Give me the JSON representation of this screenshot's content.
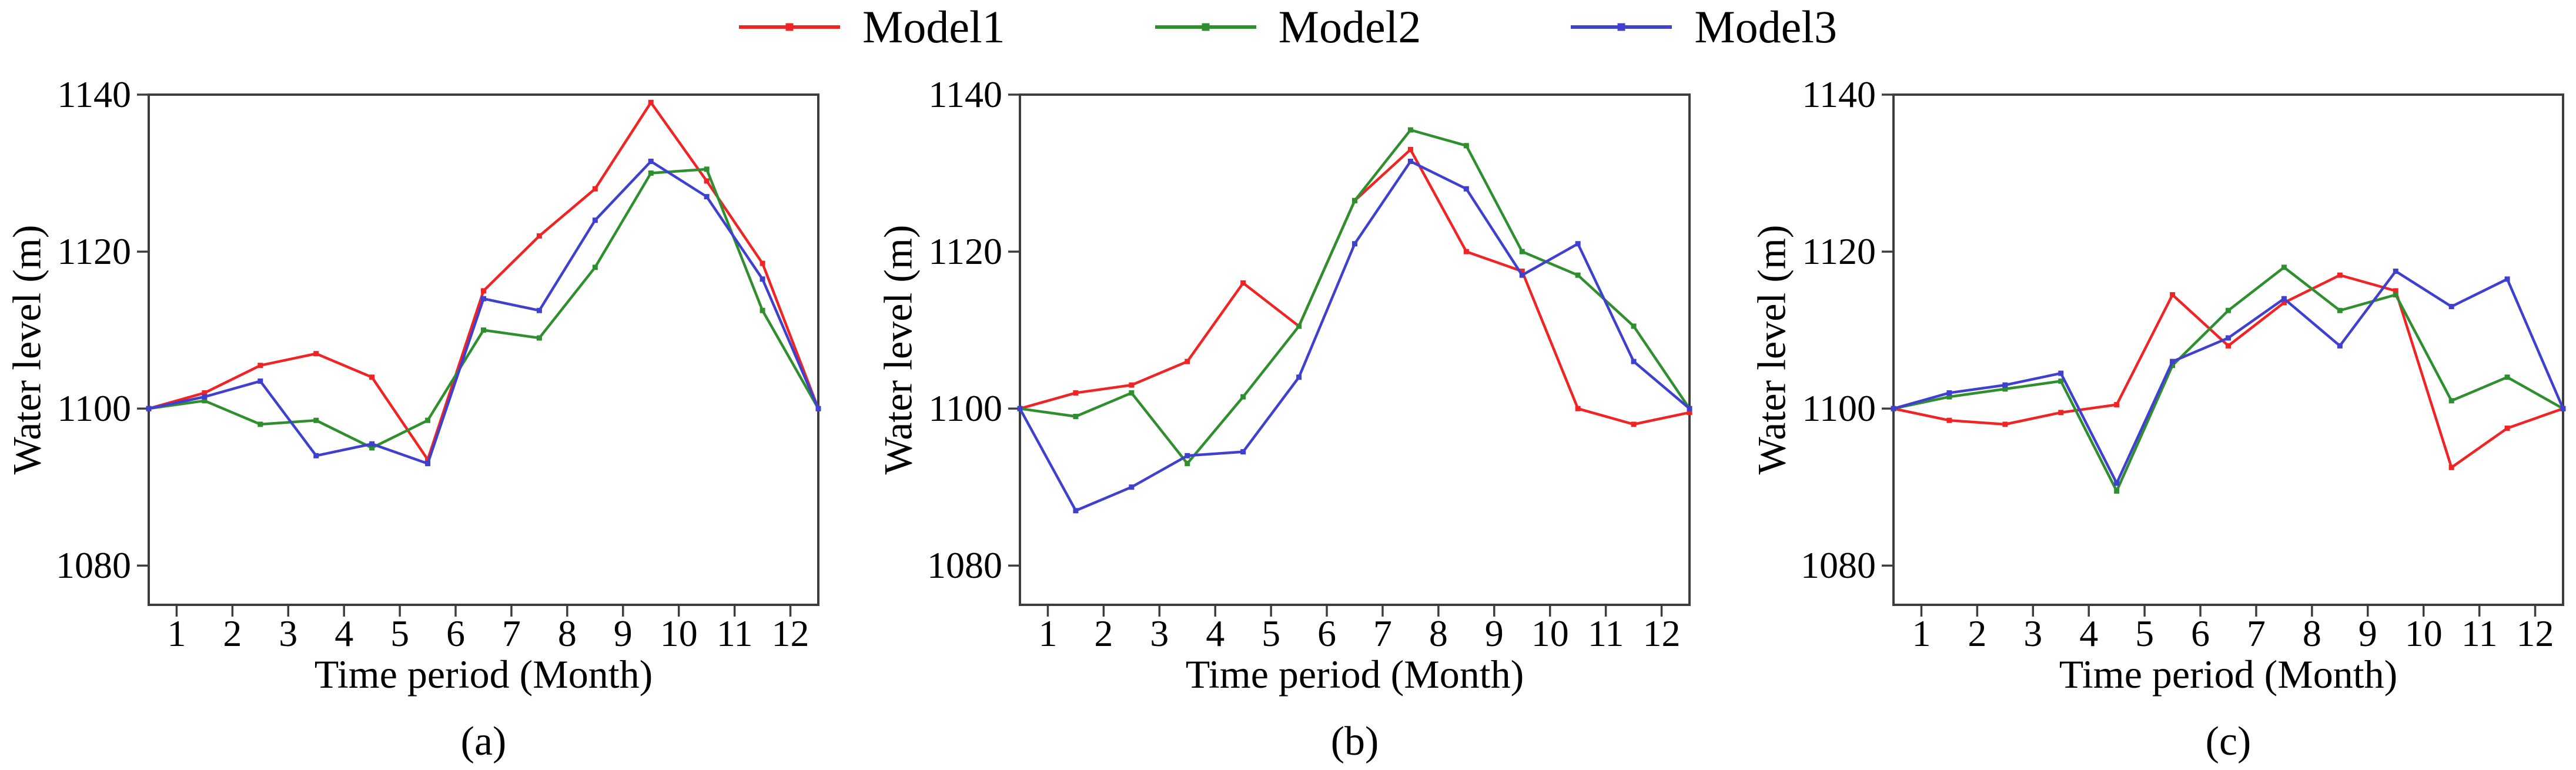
{
  "legend": {
    "items": [
      {
        "label": "Model1",
        "color": "#f02424"
      },
      {
        "label": "Model2",
        "color": "#2f8f2f"
      },
      {
        "label": "Model3",
        "color": "#4040cf"
      }
    ]
  },
  "axis_color": "#3d3d3d",
  "chart_data": {
    "type": "line",
    "xlabel": "Time period (Month)",
    "ylabel": "Water level (m)",
    "x": [
      0.5,
      1.5,
      2.5,
      3.5,
      4.5,
      5.5,
      6.5,
      7.5,
      8.5,
      9.5,
      10.5,
      11.5,
      12.5
    ],
    "xticks": [
      1,
      2,
      3,
      4,
      5,
      6,
      7,
      8,
      9,
      10,
      11,
      12
    ],
    "yticks": [
      1080,
      1100,
      1120,
      1140
    ],
    "xlim": [
      0.5,
      12.5
    ],
    "ylim": [
      1075,
      1140
    ],
    "grid": false,
    "legend_position": "top-center",
    "marker": "square",
    "panels": [
      {
        "caption": "(a)",
        "series": [
          {
            "name": "Model1",
            "color": "#f02424",
            "values": [
              1100,
              1102,
              1105.5,
              1107,
              1104,
              1093.5,
              1115,
              1122,
              1128,
              1139,
              1129,
              1118.5,
              1100
            ]
          },
          {
            "name": "Model2",
            "color": "#2f8f2f",
            "values": [
              1100,
              1101,
              1098,
              1098.5,
              1095,
              1098.5,
              1110,
              1109,
              1118,
              1130,
              1130.5,
              1112.5,
              1100
            ]
          },
          {
            "name": "Model3",
            "color": "#4040cf",
            "values": [
              1100,
              1101.5,
              1103.5,
              1094,
              1095.5,
              1093,
              1114,
              1112.5,
              1124,
              1131.5,
              1127,
              1116.5,
              1100
            ]
          }
        ]
      },
      {
        "caption": "(b)",
        "series": [
          {
            "name": "Model1",
            "color": "#f02424",
            "values": [
              1100,
              1102,
              1103,
              1106,
              1116,
              1110.5,
              1126.5,
              1133,
              1120,
              1117.5,
              1100,
              1098,
              1099.5
            ]
          },
          {
            "name": "Model2",
            "color": "#2f8f2f",
            "values": [
              1100,
              1099,
              1102,
              1093,
              1101.5,
              1110.5,
              1126.5,
              1135.5,
              1133.5,
              1120,
              1117,
              1110.5,
              1100
            ]
          },
          {
            "name": "Model3",
            "color": "#4040cf",
            "values": [
              1100,
              1087,
              1090,
              1094,
              1094.5,
              1104,
              1121,
              1131.5,
              1128,
              1117,
              1121,
              1106,
              1100
            ]
          }
        ]
      },
      {
        "caption": "(c)",
        "series": [
          {
            "name": "Model1",
            "color": "#f02424",
            "values": [
              1100,
              1098.5,
              1098,
              1099.5,
              1100.5,
              1114.5,
              1108,
              1113.5,
              1117,
              1115,
              1092.5,
              1097.5,
              1100
            ]
          },
          {
            "name": "Model2",
            "color": "#2f8f2f",
            "values": [
              1100,
              1101.5,
              1102.5,
              1103.5,
              1089.5,
              1105.5,
              1112.5,
              1118,
              1112.5,
              1114.5,
              1101,
              1104,
              1100
            ]
          },
          {
            "name": "Model3",
            "color": "#4040cf",
            "values": [
              1100,
              1102,
              1103,
              1104.5,
              1090.5,
              1106,
              1109,
              1114,
              1108,
              1117.5,
              1113,
              1116.5,
              1100
            ]
          }
        ]
      }
    ]
  }
}
